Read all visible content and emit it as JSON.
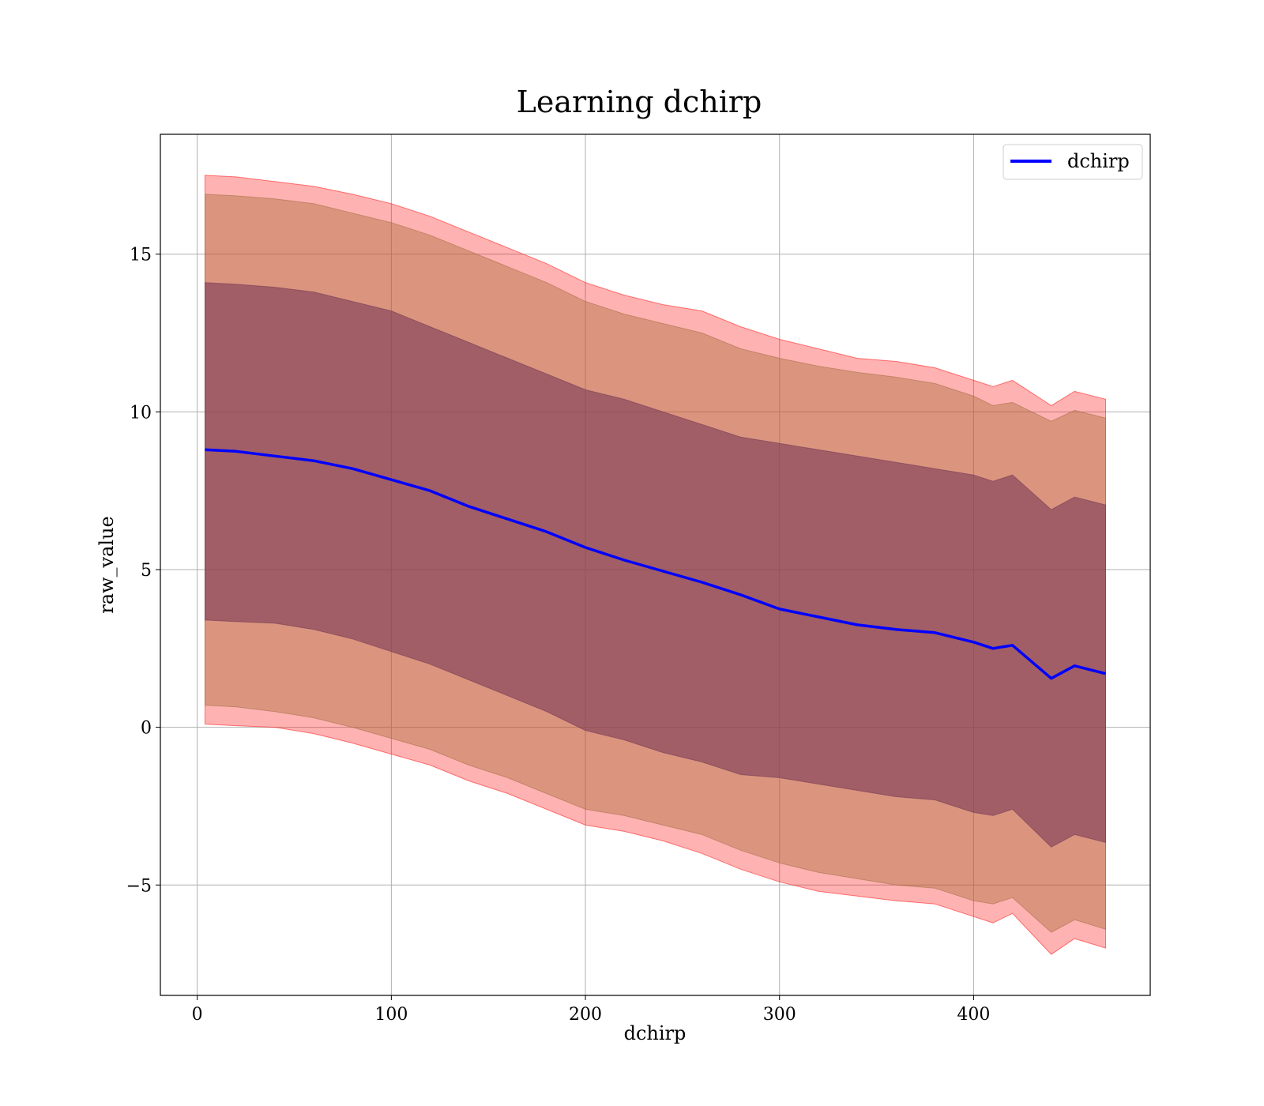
{
  "chart_data": {
    "type": "line",
    "title": "Learning dchirp",
    "xlabel": "dchirp",
    "ylabel": "raw_value",
    "xlim": [
      -19,
      491
    ],
    "ylim": [
      -8.5,
      18.8
    ],
    "xticks": [
      0,
      100,
      200,
      300,
      400
    ],
    "xtick_labels": [
      "0",
      "100",
      "200",
      "300",
      "400"
    ],
    "yticks": [
      -5,
      0,
      5,
      10,
      15
    ],
    "ytick_labels": [
      "−5",
      "0",
      "5",
      "10",
      "15"
    ],
    "grid": true,
    "legend": {
      "position": "top-right",
      "entries": [
        "dchirp"
      ]
    },
    "colors": {
      "line": "#0000ff",
      "band": "#ff0000",
      "inner_band": "#7a3a55",
      "grid": "#b0b0b0"
    },
    "x": [
      4,
      20,
      40,
      60,
      80,
      100,
      120,
      140,
      160,
      180,
      200,
      220,
      240,
      260,
      280,
      300,
      320,
      340,
      360,
      380,
      400,
      410,
      420,
      440,
      452,
      468
    ],
    "series": [
      {
        "name": "dchirp",
        "values": [
          8.8,
          8.75,
          8.6,
          8.45,
          8.2,
          7.85,
          7.5,
          7.0,
          6.6,
          6.2,
          5.7,
          5.3,
          4.95,
          4.6,
          4.2,
          3.75,
          3.5,
          3.25,
          3.1,
          3.0,
          2.7,
          2.5,
          2.6,
          1.55,
          1.95,
          1.7
        ]
      }
    ],
    "bands": [
      {
        "upper": [
          17.5,
          17.45,
          17.3,
          17.15,
          16.9,
          16.6,
          16.2,
          15.7,
          15.2,
          14.7,
          14.1,
          13.7,
          13.4,
          13.2,
          12.7,
          12.3,
          12.0,
          11.7,
          11.6,
          11.4,
          11.0,
          10.8,
          11.0,
          10.2,
          10.65,
          10.4
        ],
        "lower": [
          0.1,
          0.05,
          0.0,
          -0.2,
          -0.5,
          -0.85,
          -1.2,
          -1.7,
          -2.1,
          -2.6,
          -3.1,
          -3.3,
          -3.6,
          -4.0,
          -4.5,
          -4.9,
          -5.2,
          -5.35,
          -5.5,
          -5.6,
          -6.0,
          -6.2,
          -5.9,
          -7.2,
          -6.7,
          -7.0
        ]
      },
      {
        "upper": [
          16.9,
          16.85,
          16.75,
          16.6,
          16.3,
          16.0,
          15.6,
          15.1,
          14.6,
          14.1,
          13.5,
          13.1,
          12.8,
          12.5,
          12.0,
          11.7,
          11.45,
          11.25,
          11.1,
          10.9,
          10.5,
          10.2,
          10.3,
          9.7,
          10.05,
          9.8
        ],
        "lower": [
          0.7,
          0.65,
          0.5,
          0.3,
          0.0,
          -0.35,
          -0.7,
          -1.2,
          -1.6,
          -2.1,
          -2.6,
          -2.8,
          -3.1,
          -3.4,
          -3.9,
          -4.3,
          -4.6,
          -4.8,
          -5.0,
          -5.1,
          -5.5,
          -5.6,
          -5.4,
          -6.5,
          -6.1,
          -6.4
        ]
      },
      {
        "upper": [
          14.1,
          14.05,
          13.95,
          13.8,
          13.5,
          13.2,
          12.7,
          12.2,
          11.7,
          11.2,
          10.7,
          10.4,
          10.0,
          9.6,
          9.2,
          9.0,
          8.8,
          8.6,
          8.4,
          8.2,
          8.0,
          7.8,
          8.0,
          6.9,
          7.3,
          7.05
        ],
        "lower": [
          3.4,
          3.35,
          3.3,
          3.1,
          2.8,
          2.4,
          2.0,
          1.5,
          1.0,
          0.5,
          -0.1,
          -0.4,
          -0.8,
          -1.1,
          -1.5,
          -1.6,
          -1.8,
          -2.0,
          -2.2,
          -2.3,
          -2.7,
          -2.8,
          -2.6,
          -3.8,
          -3.4,
          -3.65
        ]
      }
    ]
  }
}
